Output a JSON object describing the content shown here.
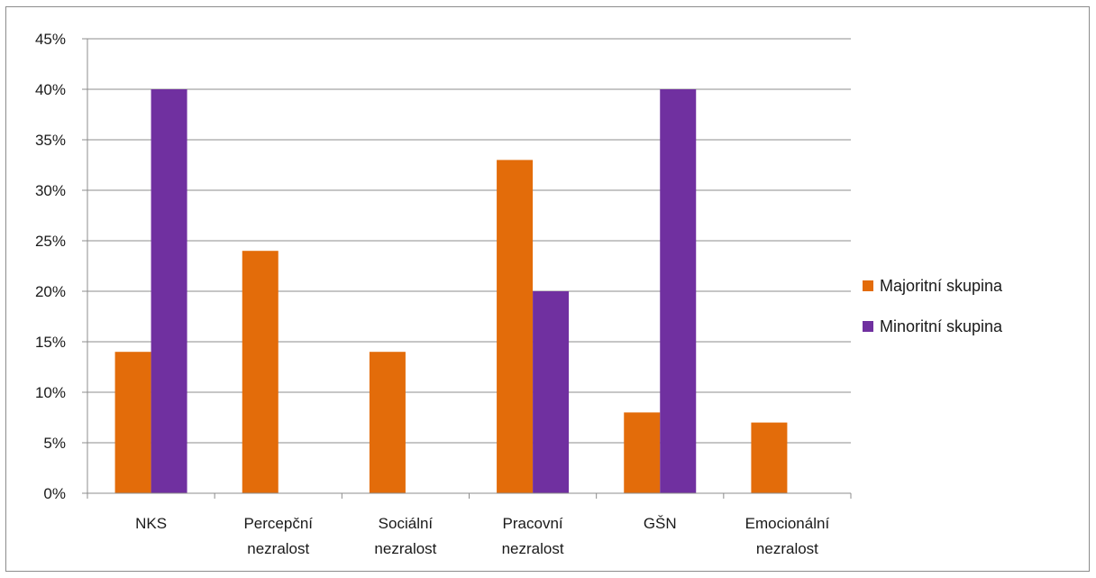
{
  "chart_data": {
    "type": "bar",
    "categories": [
      [
        "NKS"
      ],
      [
        "Percepční",
        "nezralost"
      ],
      [
        "Sociální",
        "nezralost"
      ],
      [
        "Pracovní",
        "nezralost"
      ],
      [
        "GŠN"
      ],
      [
        "Emocionální",
        "nezralost"
      ]
    ],
    "series": [
      {
        "name": "Majoritní skupina",
        "color": "#E36C0A",
        "values": [
          14,
          24,
          14,
          33,
          8,
          7
        ]
      },
      {
        "name": "Minoritní skupina",
        "color": "#7030A0",
        "values": [
          40,
          0,
          0,
          20,
          40,
          0
        ]
      }
    ],
    "y_ticks": [
      "0%",
      "5%",
      "10%",
      "15%",
      "20%",
      "25%",
      "30%",
      "35%",
      "40%",
      "45%"
    ],
    "ylim": [
      0,
      45
    ],
    "y_unit": "%",
    "grid": true,
    "legend_position": "right"
  }
}
